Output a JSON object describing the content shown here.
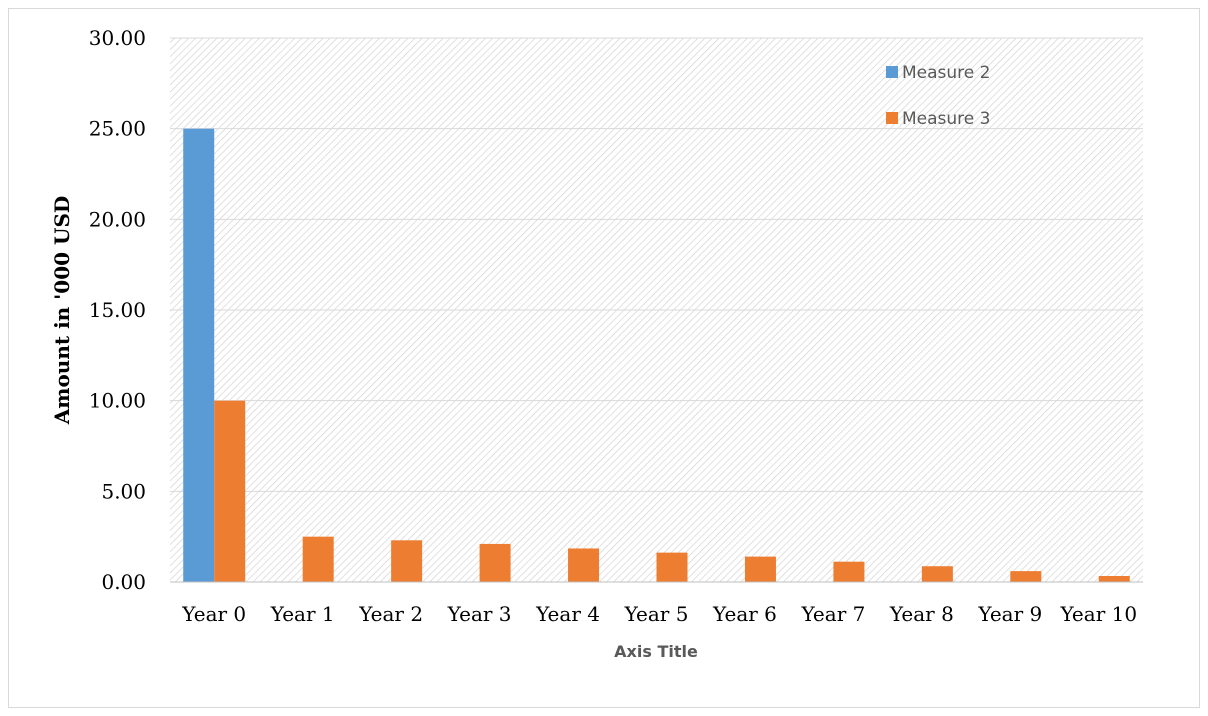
{
  "chart_data": {
    "type": "bar",
    "categories": [
      "Year 0",
      "Year 1",
      "Year 2",
      "Year 3",
      "Year 4",
      "Year 5",
      "Year 6",
      "Year 7",
      "Year 8",
      "Year 9",
      "Year 10"
    ],
    "series": [
      {
        "name": "Measure 2",
        "color": "#5b9bd5",
        "values": [
          25.0,
          0,
          0,
          0,
          0,
          0,
          0,
          0,
          0,
          0,
          0
        ]
      },
      {
        "name": "Measure 3",
        "color": "#ed7d31",
        "values": [
          10.0,
          2.5,
          2.3,
          2.1,
          1.85,
          1.62,
          1.4,
          1.12,
          0.87,
          0.6,
          0.33
        ]
      }
    ],
    "yticks": [
      "0.00",
      "5.00",
      "10.00",
      "15.00",
      "20.00",
      "25.00",
      "30.00"
    ],
    "ylim": [
      0,
      30
    ],
    "xlabel": "Axis Title",
    "ylabel": "Amount in '000 USD",
    "grid": true,
    "background": "hatched",
    "legend_position": "top-right"
  }
}
